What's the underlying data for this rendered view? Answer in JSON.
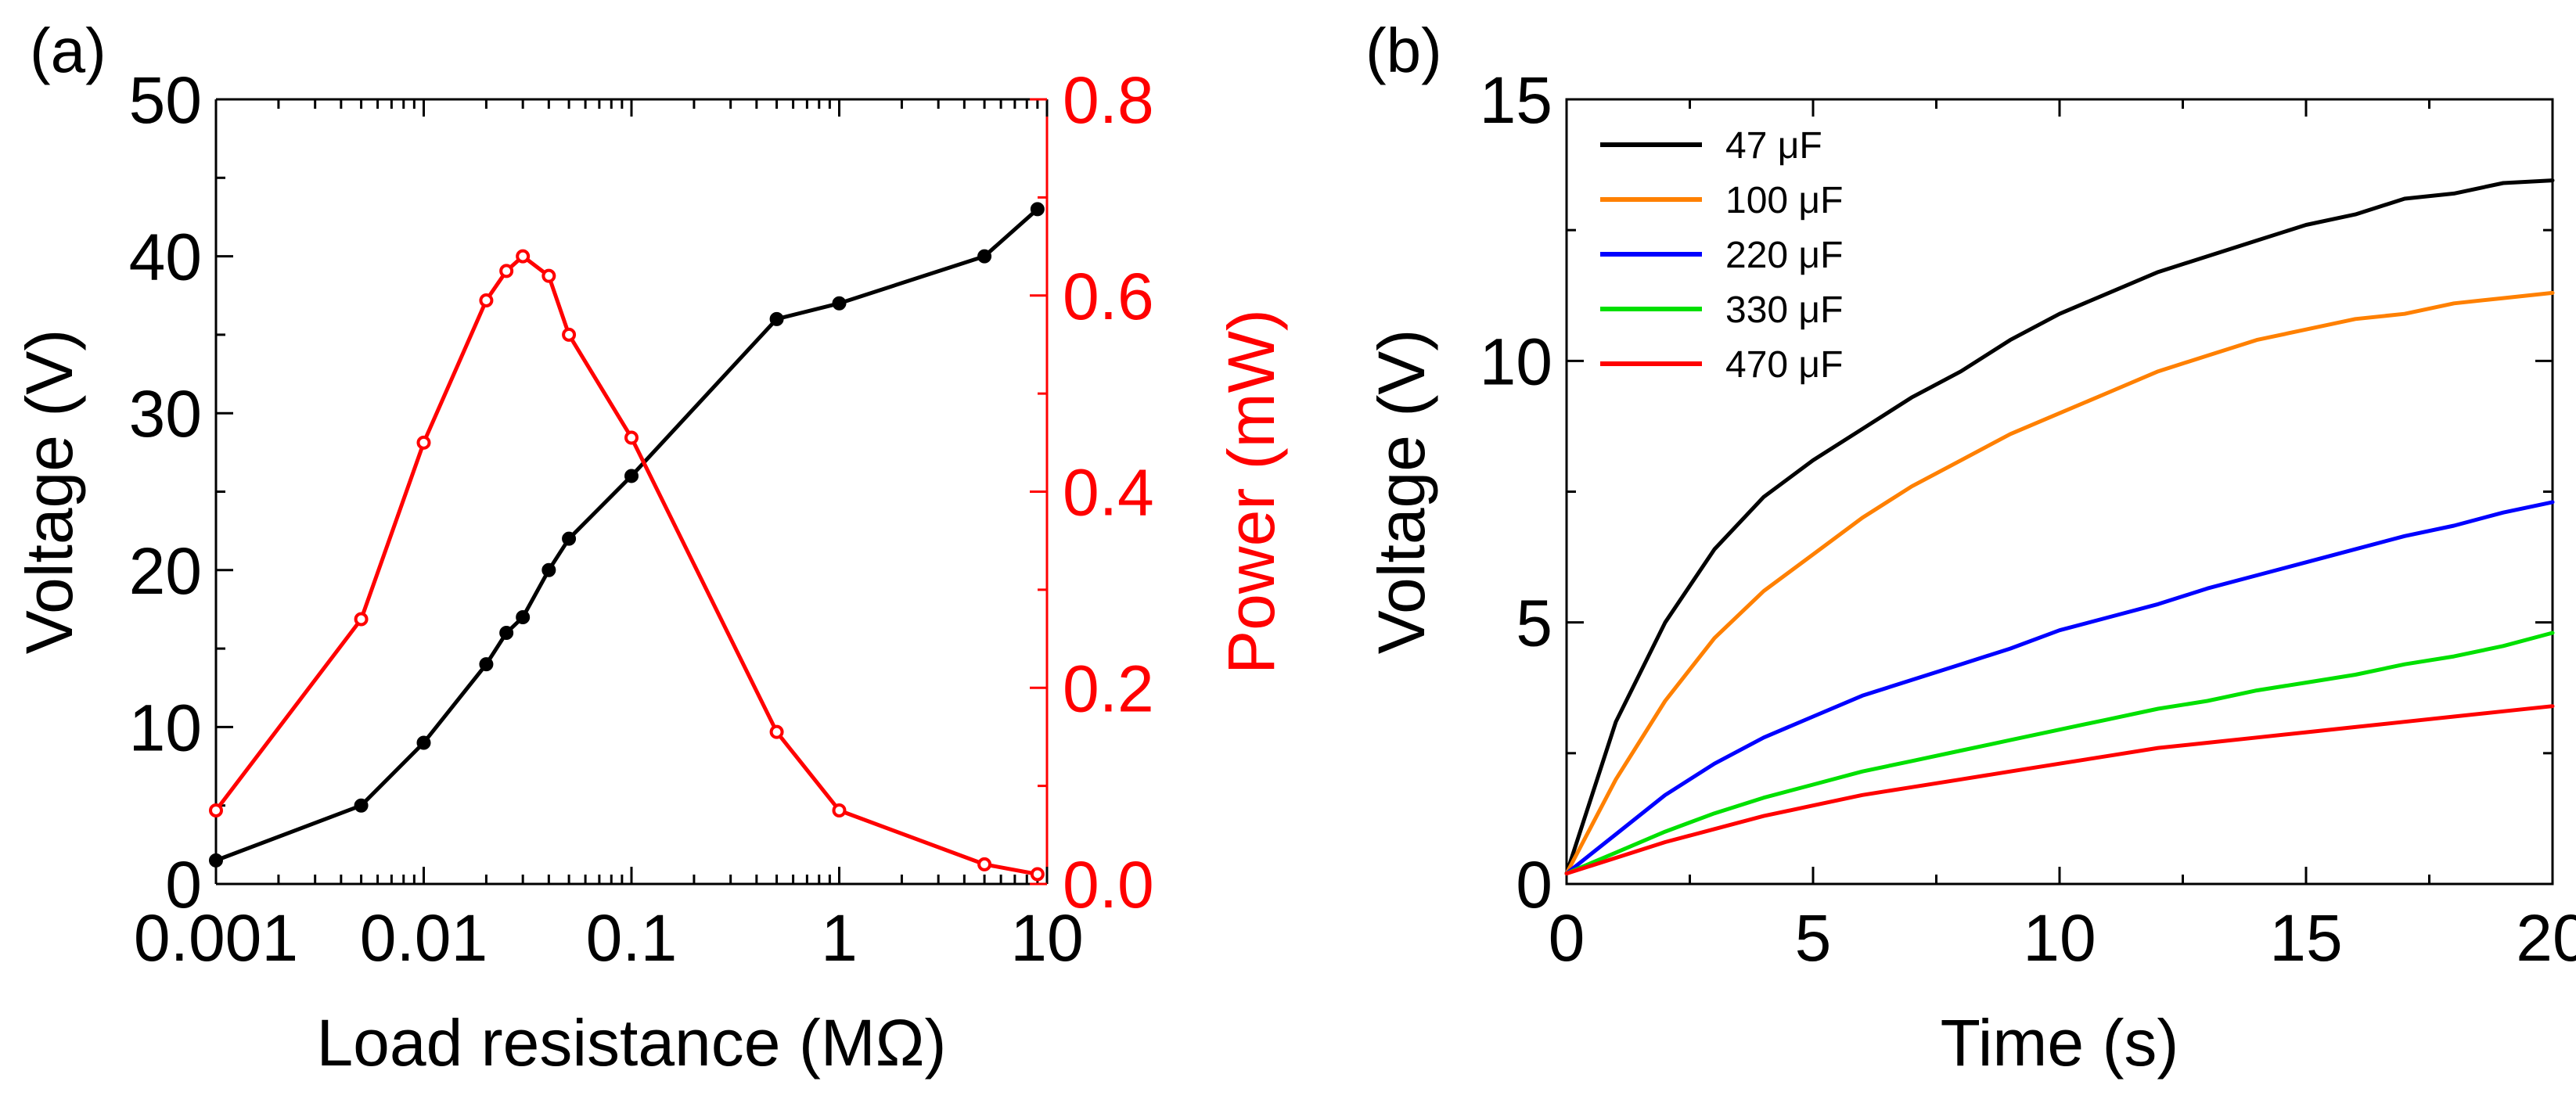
{
  "chart_data": [
    {
      "type": "line",
      "panel_label": "(a)",
      "xlabel": "Load resistance (MΩ)",
      "xscale": "log",
      "xlim": [
        0.001,
        10
      ],
      "x_ticks": [
        0.001,
        0.01,
        0.1,
        1,
        10
      ],
      "x_tick_labels": [
        "0.001",
        "0.01",
        "0.1",
        "1",
        "10"
      ],
      "ylabel": "Voltage (V)",
      "ylim": [
        0,
        50
      ],
      "y_ticks": [
        0,
        10,
        20,
        30,
        40,
        50
      ],
      "y_tick_labels": [
        "0",
        "10",
        "20",
        "30",
        "40",
        "50"
      ],
      "ylabel_right": "Power (mW)",
      "ylim_right": [
        0,
        0.8
      ],
      "y_right_ticks": [
        0,
        0.2,
        0.4,
        0.6,
        0.8
      ],
      "y_right_tick_labels": [
        "0.0",
        "0.2",
        "0.4",
        "0.6",
        "0.8"
      ],
      "grid": false,
      "series": [
        {
          "name": "Voltage",
          "axis": "left",
          "color": "#000000",
          "x": [
            0.001,
            0.005,
            0.01,
            0.02,
            0.025,
            0.03,
            0.04,
            0.05,
            0.1,
            0.5,
            1,
            5,
            9
          ],
          "values": [
            1.5,
            5,
            9,
            14,
            16,
            17,
            20,
            22,
            26,
            36,
            37,
            40,
            43
          ]
        },
        {
          "name": "Power",
          "axis": "right",
          "color": "#ff0000",
          "x": [
            0.001,
            0.005,
            0.01,
            0.02,
            0.025,
            0.03,
            0.04,
            0.05,
            0.1,
            0.5,
            1,
            5,
            9
          ],
          "values": [
            0.075,
            0.27,
            0.45,
            0.595,
            0.625,
            0.64,
            0.62,
            0.56,
            0.455,
            0.155,
            0.075,
            0.02,
            0.01
          ]
        }
      ]
    },
    {
      "type": "line",
      "panel_label": "(b)",
      "xlabel": "Time (s)",
      "xlim": [
        0,
        20
      ],
      "x_ticks": [
        0,
        5,
        10,
        15,
        20
      ],
      "x_tick_labels": [
        "0",
        "5",
        "10",
        "15",
        "20"
      ],
      "ylabel": "Voltage (V)",
      "ylim": [
        0,
        15
      ],
      "y_ticks": [
        0,
        5,
        10,
        15
      ],
      "y_tick_labels": [
        "0",
        "5",
        "10",
        "15"
      ],
      "grid": false,
      "legend_position": "top-left",
      "series": [
        {
          "name": "47 μF",
          "color": "#000000",
          "x": [
            0,
            1,
            2,
            3,
            4,
            5,
            6,
            7,
            8,
            9,
            10,
            11,
            12,
            13,
            14,
            15,
            16,
            17,
            18,
            19,
            20
          ],
          "values": [
            0.2,
            3.1,
            5.0,
            6.4,
            7.4,
            8.1,
            8.7,
            9.3,
            9.8,
            10.4,
            10.9,
            11.3,
            11.7,
            12.0,
            12.3,
            12.6,
            12.8,
            13.1,
            13.2,
            13.4,
            13.45
          ]
        },
        {
          "name": "100 μF",
          "color": "#ff8000",
          "x": [
            0,
            1,
            2,
            3,
            4,
            5,
            6,
            7,
            8,
            9,
            10,
            11,
            12,
            13,
            14,
            15,
            16,
            17,
            18,
            19,
            20
          ],
          "values": [
            0.2,
            2.0,
            3.5,
            4.7,
            5.6,
            6.3,
            7.0,
            7.6,
            8.1,
            8.6,
            9.0,
            9.4,
            9.8,
            10.1,
            10.4,
            10.6,
            10.8,
            10.9,
            11.1,
            11.2,
            11.3
          ]
        },
        {
          "name": "220 μF",
          "color": "#0000ff",
          "x": [
            0,
            1,
            2,
            3,
            4,
            5,
            6,
            7,
            8,
            9,
            10,
            11,
            12,
            13,
            14,
            15,
            16,
            17,
            18,
            19,
            20
          ],
          "values": [
            0.2,
            0.95,
            1.7,
            2.3,
            2.8,
            3.2,
            3.6,
            3.9,
            4.2,
            4.5,
            4.85,
            5.1,
            5.35,
            5.65,
            5.9,
            6.15,
            6.4,
            6.65,
            6.85,
            7.1,
            7.3
          ]
        },
        {
          "name": "330 μF",
          "color": "#00e000",
          "x": [
            0,
            1,
            2,
            3,
            4,
            5,
            6,
            7,
            8,
            9,
            10,
            11,
            12,
            13,
            14,
            15,
            16,
            17,
            18,
            19,
            20
          ],
          "values": [
            0.2,
            0.6,
            1.0,
            1.35,
            1.65,
            1.9,
            2.15,
            2.35,
            2.55,
            2.75,
            2.95,
            3.15,
            3.35,
            3.5,
            3.7,
            3.85,
            4.0,
            4.2,
            4.35,
            4.55,
            4.8
          ]
        },
        {
          "name": "470 μF",
          "color": "#ff0000",
          "x": [
            0,
            1,
            2,
            3,
            4,
            5,
            6,
            7,
            8,
            9,
            10,
            11,
            12,
            13,
            14,
            15,
            16,
            17,
            18,
            19,
            20
          ],
          "values": [
            0.2,
            0.5,
            0.8,
            1.05,
            1.3,
            1.5,
            1.7,
            1.85,
            2.0,
            2.15,
            2.3,
            2.45,
            2.6,
            2.7,
            2.8,
            2.9,
            3.0,
            3.1,
            3.2,
            3.3,
            3.4
          ]
        }
      ]
    }
  ]
}
